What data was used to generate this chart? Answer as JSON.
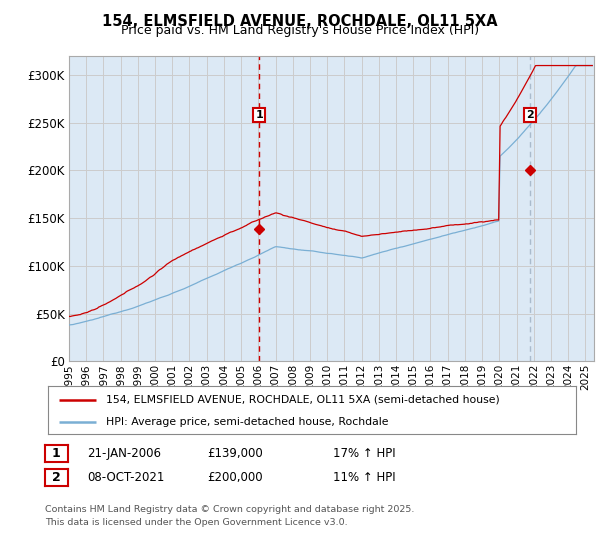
{
  "title": "154, ELMSFIELD AVENUE, ROCHDALE, OL11 5XA",
  "subtitle": "Price paid vs. HM Land Registry's House Price Index (HPI)",
  "ylim": [
    0,
    320000
  ],
  "yticks": [
    0,
    50000,
    100000,
    150000,
    200000,
    250000,
    300000
  ],
  "ytick_labels": [
    "£0",
    "£50K",
    "£100K",
    "£150K",
    "£200K",
    "£250K",
    "£300K"
  ],
  "xlim_start": 1995.0,
  "xlim_end": 2025.5,
  "xtick_years": [
    1995,
    1996,
    1997,
    1998,
    1999,
    2000,
    2001,
    2002,
    2003,
    2004,
    2005,
    2006,
    2007,
    2008,
    2009,
    2010,
    2011,
    2012,
    2013,
    2014,
    2015,
    2016,
    2017,
    2018,
    2019,
    2020,
    2021,
    2022,
    2023,
    2024,
    2025
  ],
  "red_color": "#cc0000",
  "blue_color": "#7aafd4",
  "fill_color": "#dce9f5",
  "vline_color": "#cc0000",
  "vline2_color": "#aabbcc",
  "marker1_x": 2006.05,
  "marker1_y": 139000,
  "marker1_label": "1",
  "marker2_x": 2021.77,
  "marker2_y": 200000,
  "marker2_label": "2",
  "legend_line1": "154, ELMSFIELD AVENUE, ROCHDALE, OL11 5XA (semi-detached house)",
  "legend_line2": "HPI: Average price, semi-detached house, Rochdale",
  "annotation1": [
    "1",
    "21-JAN-2006",
    "£139,000",
    "17% ↑ HPI"
  ],
  "annotation2": [
    "2",
    "08-OCT-2021",
    "£200,000",
    "11% ↑ HPI"
  ],
  "copyright": "Contains HM Land Registry data © Crown copyright and database right 2025.\nThis data is licensed under the Open Government Licence v3.0.",
  "bg_color": "#ffffff",
  "grid_color": "#cccccc"
}
